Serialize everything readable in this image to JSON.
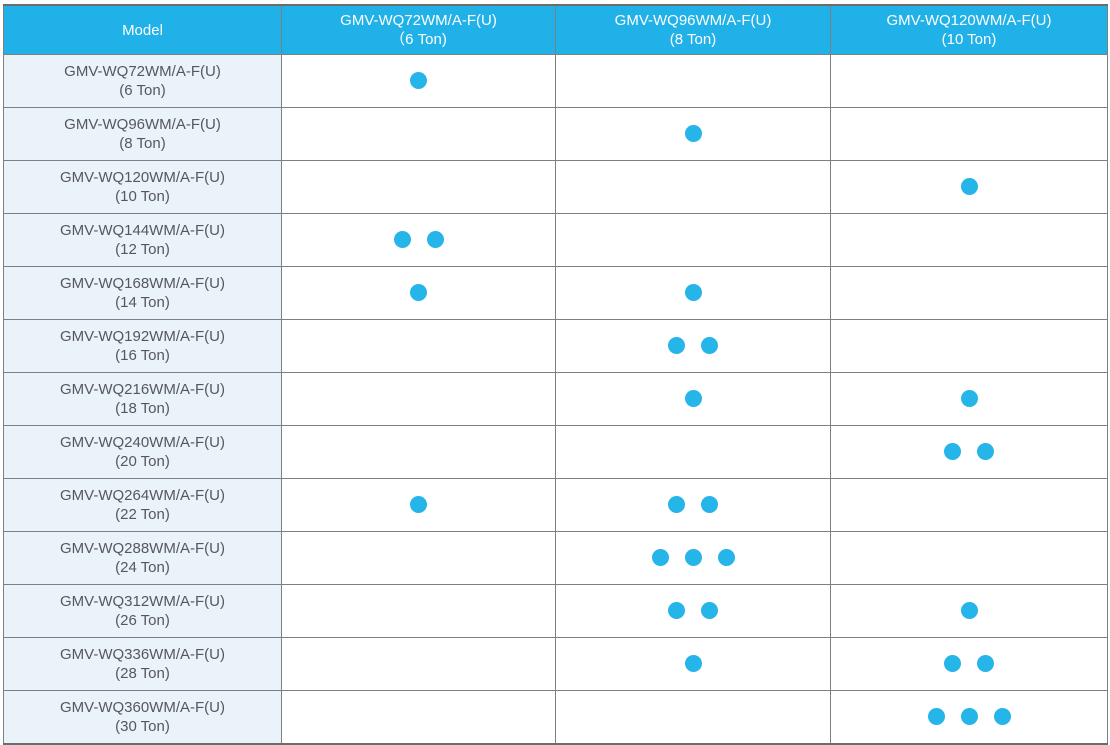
{
  "colors": {
    "header-bg": "#1fb1e8",
    "model-col-bg": "#eaf2fa",
    "dot-color": "#25b5e9",
    "body-text": "#56585b",
    "border-gray": "#7d8083"
  },
  "icons": {
    "dot": "unit-dot (filled cyan circle = one unit of that module in the combination)"
  },
  "table": {
    "header": {
      "model_label": "Model",
      "columns": [
        {
          "line1": "GMV-WQ72WM/A-F(U)",
          "line2": "（6 Ton)"
        },
        {
          "line1": "GMV-WQ96WM/A-F(U)",
          "line2": "(8 Ton)"
        },
        {
          "line1": "GMV-WQ120WM/A-F(U)",
          "line2": "(10 Ton)"
        }
      ]
    },
    "rows": [
      {
        "model": "GMV-WQ72WM/A-F(U)",
        "tonnage": "(6 Ton)",
        "dots": [
          1,
          0,
          0
        ]
      },
      {
        "model": "GMV-WQ96WM/A-F(U)",
        "tonnage": "(8 Ton)",
        "dots": [
          0,
          1,
          0
        ]
      },
      {
        "model": "GMV-WQ120WM/A-F(U)",
        "tonnage": "(10 Ton)",
        "dots": [
          0,
          0,
          1
        ]
      },
      {
        "model": "GMV-WQ144WM/A-F(U)",
        "tonnage": "(12 Ton)",
        "dots": [
          2,
          0,
          0
        ]
      },
      {
        "model": "GMV-WQ168WM/A-F(U)",
        "tonnage": "(14 Ton)",
        "dots": [
          1,
          1,
          0
        ]
      },
      {
        "model": "GMV-WQ192WM/A-F(U)",
        "tonnage": "(16 Ton)",
        "dots": [
          0,
          2,
          0
        ]
      },
      {
        "model": "GMV-WQ216WM/A-F(U)",
        "tonnage": "(18 Ton)",
        "dots": [
          0,
          1,
          1
        ]
      },
      {
        "model": "GMV-WQ240WM/A-F(U)",
        "tonnage": "(20 Ton)",
        "dots": [
          0,
          0,
          2
        ]
      },
      {
        "model": "GMV-WQ264WM/A-F(U)",
        "tonnage": "(22 Ton)",
        "dots": [
          1,
          2,
          0
        ]
      },
      {
        "model": "GMV-WQ288WM/A-F(U)",
        "tonnage": "(24 Ton)",
        "dots": [
          0,
          3,
          0
        ]
      },
      {
        "model": "GMV-WQ312WM/A-F(U)",
        "tonnage": "(26 Ton)",
        "dots": [
          0,
          2,
          1
        ]
      },
      {
        "model": "GMV-WQ336WM/A-F(U)",
        "tonnage": "(28 Ton)",
        "dots": [
          0,
          1,
          2
        ]
      },
      {
        "model": "GMV-WQ360WM/A-F(U)",
        "tonnage": "(30 Ton)",
        "dots": [
          0,
          0,
          3
        ]
      }
    ]
  }
}
